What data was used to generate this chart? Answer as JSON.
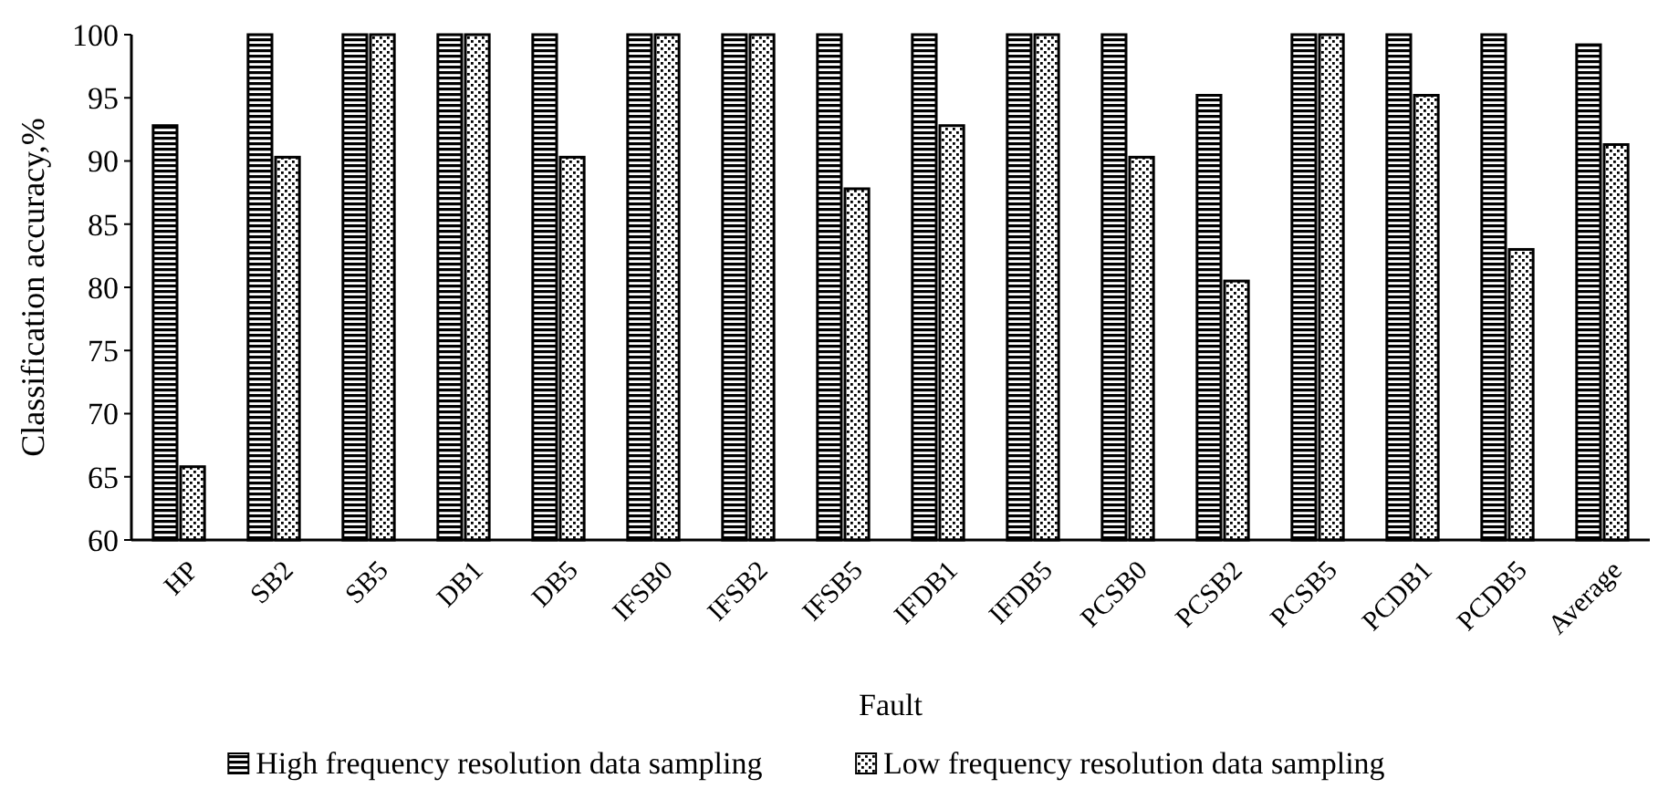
{
  "chart_data": {
    "type": "bar",
    "xlabel": "Fault",
    "ylabel": "Classification accuracy,%",
    "categories": [
      "HP",
      "SB2",
      "SB5",
      "DB1",
      "DB5",
      "IFSB0",
      "IFSB2",
      "IFSB5",
      "IFDB1",
      "IFDB5",
      "PCSB0",
      "PCSB2",
      "PCSB5",
      "PCDB1",
      "PCDB5",
      "Average"
    ],
    "series": [
      {
        "name": "High frequency resolution data sampling",
        "color": "#000000",
        "values": [
          92.8,
          100,
          100,
          100,
          100,
          100,
          100,
          100,
          100,
          100,
          100,
          95.2,
          100,
          100,
          100,
          99.2
        ]
      },
      {
        "name": "Low frequency resolution data sampling",
        "color": "#000000",
        "values": [
          65.8,
          90.3,
          100,
          100,
          90.3,
          100,
          100,
          87.8,
          92.8,
          100,
          90.3,
          80.5,
          100,
          95.2,
          83,
          91.3
        ]
      }
    ],
    "ylim": [
      60,
      100
    ],
    "yticks": [
      60,
      65,
      70,
      75,
      80,
      85,
      90,
      95,
      100
    ],
    "grid": false,
    "legend": "bottom"
  }
}
